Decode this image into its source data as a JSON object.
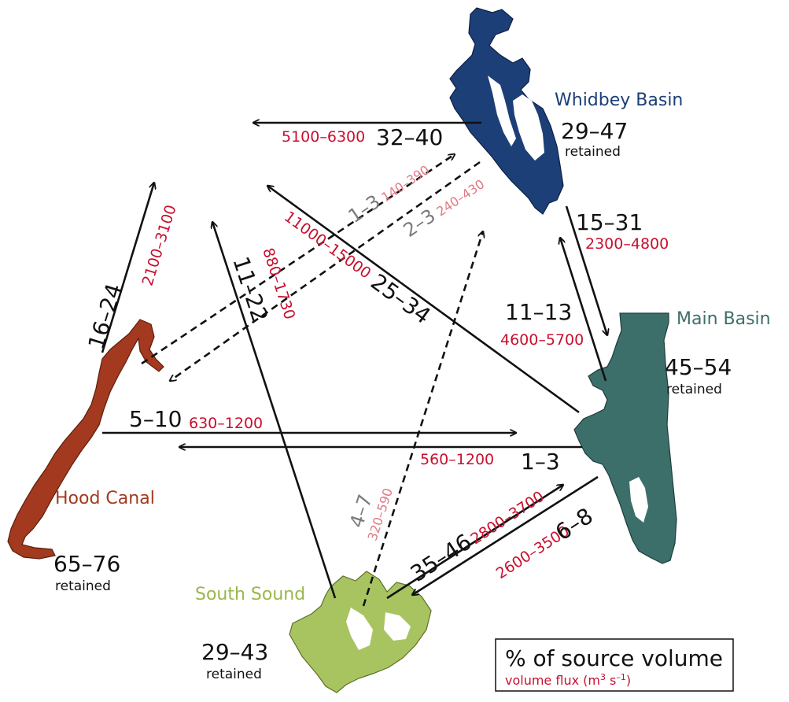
{
  "colors": {
    "whidbey": "#1d3f78",
    "main": "#3d6f6a",
    "hood": "#a3391f",
    "south": "#a8c460",
    "flux": "#c8102e",
    "grey": "#7a7a7a",
    "pink": "#e07a86"
  },
  "basins": {
    "whidbey": {
      "name": "Whidbey Basin",
      "retained": "29–47",
      "retained_label": "retained"
    },
    "main": {
      "name": "Main Basin",
      "retained": "45–54",
      "retained_label": "retained"
    },
    "hood": {
      "name": "Hood Canal",
      "retained": "65–76",
      "retained_label": "retained"
    },
    "south": {
      "name": "South Sound",
      "retained": "29–43",
      "retained_label": "retained"
    }
  },
  "flows": {
    "whidbey_out": {
      "pct": "32–40",
      "flux": "5100–6300"
    },
    "whidbey_to_main": {
      "pct": "15–31",
      "flux": "2300–4800"
    },
    "main_to_whidbey": {
      "pct": "11–13",
      "flux": "4600–5700"
    },
    "hood_out": {
      "pct": "16–24",
      "flux": "2100–3100"
    },
    "main_out": {
      "pct": "25–34",
      "flux": "11000–15000"
    },
    "south_out": {
      "pct": "11–22",
      "flux": "880–1730"
    },
    "hood_to_main": {
      "pct": "5–10",
      "flux": "630–1200"
    },
    "main_to_hood": {
      "pct": "1–3",
      "flux": "560–1200"
    },
    "hood_to_whidbey": {
      "pct": "1–3",
      "flux": "140–390"
    },
    "whidbey_to_hood": {
      "pct": "2–3",
      "flux": "240–430"
    },
    "south_to_whidbey": {
      "pct": "4–7",
      "flux": "320–590"
    },
    "south_to_main": {
      "pct": "35–46",
      "flux": "2800–3700"
    },
    "main_to_south": {
      "pct": "6–8",
      "flux": "2600–3500"
    }
  },
  "legend": {
    "title": "% of source volume",
    "subtitle_prefix": "volume flux (m",
    "subtitle_sup1": "3",
    "subtitle_mid": " s",
    "subtitle_sup2": "–1",
    "subtitle_suffix": ")"
  }
}
